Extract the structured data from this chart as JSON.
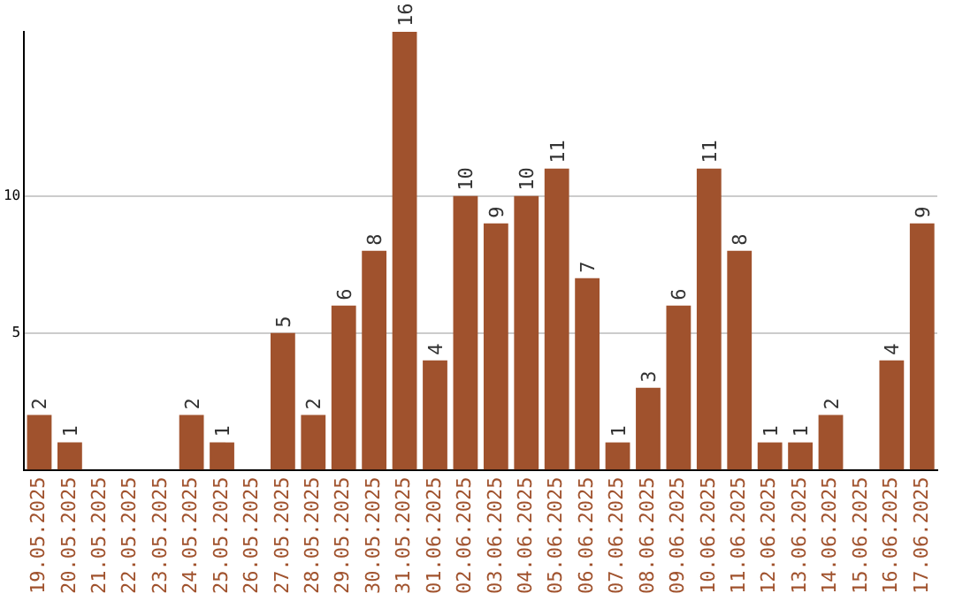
{
  "chart_data": {
    "type": "bar",
    "categories": [
      "19.05.2025",
      "20.05.2025",
      "21.05.2025",
      "22.05.2025",
      "23.05.2025",
      "24.05.2025",
      "25.05.2025",
      "26.05.2025",
      "27.05.2025",
      "28.05.2025",
      "29.05.2025",
      "30.05.2025",
      "31.05.2025",
      "01.06.2025",
      "02.06.2025",
      "03.06.2025",
      "04.06.2025",
      "05.06.2025",
      "06.06.2025",
      "07.06.2025",
      "08.06.2025",
      "09.06.2025",
      "10.06.2025",
      "11.06.2025",
      "12.06.2025",
      "13.06.2025",
      "14.06.2025",
      "15.06.2025",
      "16.06.2025",
      "17.06.2025"
    ],
    "values": [
      2,
      1,
      0,
      0,
      0,
      2,
      1,
      0,
      5,
      2,
      6,
      8,
      16,
      4,
      10,
      9,
      10,
      11,
      7,
      1,
      3,
      6,
      11,
      8,
      1,
      1,
      2,
      0,
      4,
      9
    ],
    "value_labels": [
      "2",
      "1",
      null,
      null,
      null,
      "2",
      "1",
      null,
      "5",
      "2",
      "6",
      "8",
      "16",
      "4",
      "10",
      "9",
      "10",
      "11",
      "7",
      "1",
      "3",
      "6",
      "11",
      "8",
      "1",
      "1",
      "2",
      null,
      "4",
      "9"
    ],
    "color": "#a0522d",
    "ylim": [
      0,
      16
    ],
    "yticks": [
      5,
      10
    ],
    "grid": "y",
    "legend": false
  }
}
